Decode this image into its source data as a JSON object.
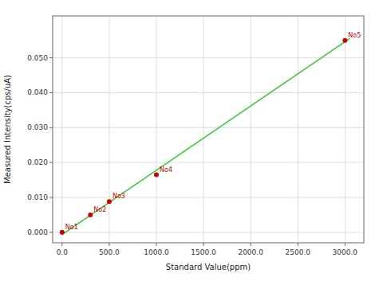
{
  "chart_data": {
    "type": "scatter",
    "xlabel": "Standard Value(ppm)",
    "ylabel": "Measured Intensity(cps/uA)",
    "xlim": [
      -100,
      3200
    ],
    "ylim": [
      -0.003,
      0.062
    ],
    "xticks": [
      {
        "value": 0.0,
        "label": "0.0"
      },
      {
        "value": 500.0,
        "label": "500.0"
      },
      {
        "value": 1000.0,
        "label": "1000.0"
      },
      {
        "value": 1500.0,
        "label": "1500.0"
      },
      {
        "value": 2000.0,
        "label": "2000.0"
      },
      {
        "value": 2500.0,
        "label": "2500.0"
      },
      {
        "value": 3000.0,
        "label": "3000.0"
      }
    ],
    "yticks": [
      {
        "value": 0.0,
        "label": "0.000"
      },
      {
        "value": 0.01,
        "label": "0.010"
      },
      {
        "value": 0.02,
        "label": "0.020"
      },
      {
        "value": 0.03,
        "label": "0.030"
      },
      {
        "value": 0.04,
        "label": "0.040"
      },
      {
        "value": 0.05,
        "label": "0.050"
      }
    ],
    "grid": true,
    "series": [
      {
        "type": "line",
        "color": "#33cc33",
        "x": [
          0,
          3050
        ],
        "values": [
          -0.000611235,
          0.055531752
        ]
      },
      {
        "type": "scatter",
        "color": "#cc0000",
        "x": [
          0,
          300,
          500,
          1000,
          3000
        ],
        "values": [
          0.0,
          0.005,
          0.0088,
          0.0165,
          0.055
        ],
        "labels": [
          "No1",
          "No2",
          "No3",
          "No4",
          "No5"
        ]
      }
    ]
  }
}
